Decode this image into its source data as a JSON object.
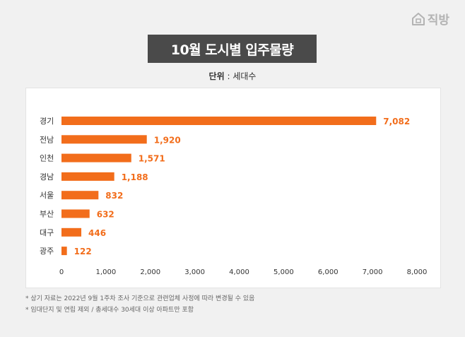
{
  "brand": {
    "name": "직방",
    "icon": "house-icon"
  },
  "title": "10월 도시별 입주물량",
  "unit": {
    "label": "단위",
    "sep": " : ",
    "value": "세대수"
  },
  "notes": [
    "* 상기 자료는 2022년 9월 1주차 조사 기준으로 관련업체 사정에 따라 변경될 수 있음",
    "* 임대단지 및 연립 제외 / 총세대수 30세대 이상 아파트만 포함"
  ],
  "colors": {
    "bar": "#f26d1b",
    "label": "#f26d1b",
    "title_bg": "#4a4a4a"
  },
  "chart_data": {
    "type": "bar",
    "orientation": "horizontal",
    "categories": [
      "경기",
      "전남",
      "인천",
      "경남",
      "서울",
      "부산",
      "대구",
      "광주"
    ],
    "values": [
      7082,
      1920,
      1571,
      1188,
      832,
      632,
      446,
      122
    ],
    "value_labels": [
      "7,082",
      "1,920",
      "1,571",
      "1,188",
      "832",
      "632",
      "446",
      "122"
    ],
    "xlim": [
      0,
      8000
    ],
    "xticks": [
      0,
      1000,
      2000,
      3000,
      4000,
      5000,
      6000,
      7000,
      8000
    ],
    "xtick_labels": [
      "0",
      "1,000",
      "2,000",
      "3,000",
      "4,000",
      "5,000",
      "6,000",
      "7,000",
      "8,000"
    ],
    "grid": false
  }
}
